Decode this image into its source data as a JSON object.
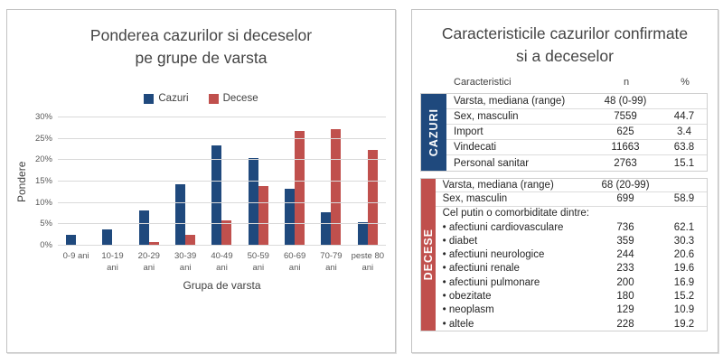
{
  "left_panel": {
    "title_line1": "Ponderea cazurilor si deceselor",
    "title_line2": "pe grupe de varsta"
  },
  "chart_data": {
    "type": "bar",
    "title": "Ponderea cazurilor si deceselor pe grupe de varsta",
    "categories": [
      "0-9 ani",
      "10-19 ani",
      "20-29 ani",
      "30-39 ani",
      "40-49 ani",
      "50-59 ani",
      "60-69 ani",
      "70-79 ani",
      "peste 80 ani"
    ],
    "tick_labels_display": [
      "0-9 ani",
      "10-19\nani",
      "20-29\nani",
      "30-39\nani",
      "40-49\nani",
      "50-59\nani",
      "60-69\nani",
      "70-79\nani",
      "peste 80\nani"
    ],
    "series": [
      {
        "name": "Cazuri",
        "color": "#1F497D",
        "values": [
          2.6,
          3.8,
          8.2,
          14.4,
          23.5,
          20.5,
          13.4,
          7.9,
          5.4
        ]
      },
      {
        "name": "Decese",
        "color": "#C0504D",
        "values": [
          0,
          0,
          0.8,
          2.6,
          6.0,
          14.0,
          26.8,
          27.2,
          22.5
        ]
      }
    ],
    "xlabel": "Grupa de varsta",
    "ylabel": "Pondere",
    "ylim": [
      0,
      30
    ],
    "ytick_labels": [
      "0%",
      "5%",
      "10%",
      "15%",
      "20%",
      "25%",
      "30%"
    ],
    "grid": true,
    "legend_position": "top"
  },
  "right_panel": {
    "title_line1": "Caracteristicile cazurilor confirmate",
    "title_line2": "si a deceselor",
    "columns": {
      "label": "Caracteristici",
      "n": "n",
      "pct": "%"
    },
    "sections": [
      {
        "band_label": "CAZURI",
        "band_color": "#1F497D",
        "rows": [
          {
            "label": "Varsta, mediana (range)",
            "n": "48 (0-99)",
            "pct": ""
          },
          {
            "label": "Sex, masculin",
            "n": "7559",
            "pct": "44.7"
          },
          {
            "label": "Import",
            "n": "625",
            "pct": "3.4"
          },
          {
            "label": "Vindecati",
            "n": "11663",
            "pct": "63.8"
          },
          {
            "label": "Personal sanitar",
            "n": "2763",
            "pct": "15.1"
          }
        ]
      },
      {
        "band_label": "DECESE",
        "band_color": "#C0504D",
        "rows": [
          {
            "label": "Varsta, mediana (range)",
            "n": "68 (20-99)",
            "pct": ""
          },
          {
            "label": "Sex, masculin",
            "n": "699",
            "pct": "58.9"
          },
          {
            "label": "Cel putin o comorbiditate dintre:",
            "n": "",
            "pct": ""
          },
          {
            "label": "• afectiuni cardiovasculare",
            "n": "736",
            "pct": "62.1"
          },
          {
            "label": "• diabet",
            "n": "359",
            "pct": "30.3"
          },
          {
            "label": "• afectiuni neurologice",
            "n": "244",
            "pct": "20.6"
          },
          {
            "label": "• afectiuni renale",
            "n": "233",
            "pct": "19.6"
          },
          {
            "label": "• afectiuni pulmonare",
            "n": "200",
            "pct": "16.9"
          },
          {
            "label": "• obezitate",
            "n": "180",
            "pct": "15.2"
          },
          {
            "label": "• neoplasm",
            "n": "129",
            "pct": "10.9"
          },
          {
            "label": "• altele",
            "n": "228",
            "pct": "19.2"
          }
        ]
      }
    ]
  }
}
